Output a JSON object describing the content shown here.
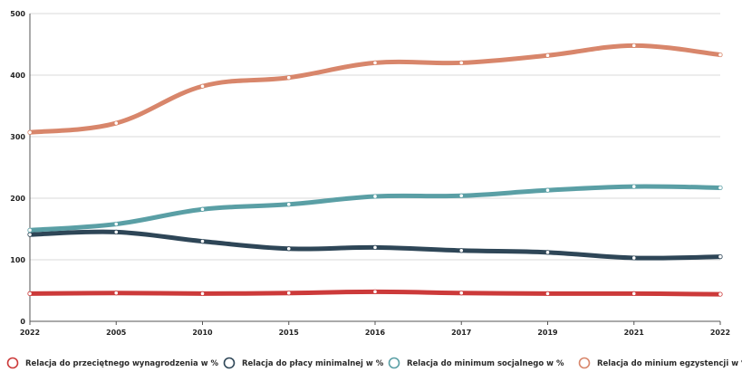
{
  "chart_data": {
    "type": "line",
    "title": "",
    "xlabel": "",
    "ylabel": "",
    "categories": [
      "2022",
      "2005",
      "2010",
      "2015",
      "2016",
      "2017",
      "2019",
      "2021",
      "2022"
    ],
    "ylim": [
      0,
      500
    ],
    "yticks": [
      0,
      100,
      200,
      300,
      400,
      500
    ],
    "grid": true,
    "legend_position": "bottom",
    "series": [
      {
        "name": "Relacja do przeciętnego wynagrodzenia w %",
        "color": "#cc3a3a",
        "values": [
          45,
          46,
          45,
          46,
          48,
          46,
          45,
          45,
          44
        ]
      },
      {
        "name": "Relacja do płacy minimalnej w %",
        "color": "#2e4657",
        "values": [
          141,
          145,
          130,
          118,
          120,
          115,
          112,
          103,
          105
        ]
      },
      {
        "name": "Relacja do minimum socjalnego w %",
        "color": "#5a9fa5",
        "values": [
          148,
          158,
          182,
          190,
          203,
          204,
          213,
          219,
          217
        ]
      },
      {
        "name": "Relacja do minium egzystencji w %",
        "color": "#d8866b",
        "values": [
          307,
          322,
          382,
          396,
          420,
          420,
          432,
          448,
          433
        ]
      }
    ]
  }
}
